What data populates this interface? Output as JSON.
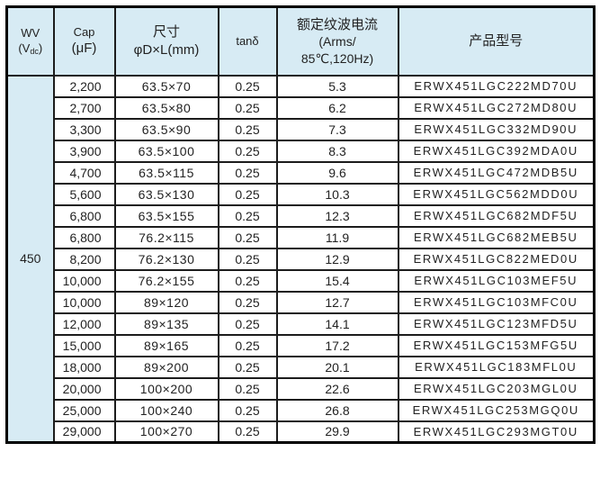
{
  "table": {
    "headers": {
      "wv": {
        "line1": "WV",
        "line2_open": "(V",
        "line2_sub": "dc",
        "line2_close": ")"
      },
      "cap": {
        "line1": "Cap",
        "line2": "(μF)"
      },
      "size": {
        "line1": "尺寸",
        "line2": "φD×L(mm)"
      },
      "tan": {
        "line1": "tanδ"
      },
      "ripple": {
        "line1": "额定纹波电流",
        "line2": "(Arms/",
        "line3": "85℃,120Hz)"
      },
      "part": {
        "line1": "产品型号"
      }
    },
    "wv_value": "450",
    "rows": [
      {
        "cap": "2,200",
        "size": "63.5×70",
        "tan": "0.25",
        "ripple": "5.3",
        "part": "ERWX451LGC222MD70U"
      },
      {
        "cap": "2,700",
        "size": "63.5×80",
        "tan": "0.25",
        "ripple": "6.2",
        "part": "ERWX451LGC272MD80U"
      },
      {
        "cap": "3,300",
        "size": "63.5×90",
        "tan": "0.25",
        "ripple": "7.3",
        "part": "ERWX451LGC332MD90U"
      },
      {
        "cap": "3,900",
        "size": "63.5×100",
        "tan": "0.25",
        "ripple": "8.3",
        "part": "ERWX451LGC392MDA0U"
      },
      {
        "cap": "4,700",
        "size": "63.5×115",
        "tan": "0.25",
        "ripple": "9.6",
        "part": "ERWX451LGC472MDB5U"
      },
      {
        "cap": "5,600",
        "size": "63.5×130",
        "tan": "0.25",
        "ripple": "10.3",
        "part": "ERWX451LGC562MDD0U"
      },
      {
        "cap": "6,800",
        "size": "63.5×155",
        "tan": "0.25",
        "ripple": "12.3",
        "part": "ERWX451LGC682MDF5U"
      },
      {
        "cap": "6,800",
        "size": "76.2×115",
        "tan": "0.25",
        "ripple": "11.9",
        "part": "ERWX451LGC682MEB5U"
      },
      {
        "cap": "8,200",
        "size": "76.2×130",
        "tan": "0.25",
        "ripple": "12.9",
        "part": "ERWX451LGC822MED0U"
      },
      {
        "cap": "10,000",
        "size": "76.2×155",
        "tan": "0.25",
        "ripple": "15.4",
        "part": "ERWX451LGC103MEF5U"
      },
      {
        "cap": "10,000",
        "size": "89×120",
        "tan": "0.25",
        "ripple": "12.7",
        "part": "ERWX451LGC103MFC0U"
      },
      {
        "cap": "12,000",
        "size": "89×135",
        "tan": "0.25",
        "ripple": "14.1",
        "part": "ERWX451LGC123MFD5U"
      },
      {
        "cap": "15,000",
        "size": "89×165",
        "tan": "0.25",
        "ripple": "17.2",
        "part": "ERWX451LGC153MFG5U"
      },
      {
        "cap": "18,000",
        "size": "89×200",
        "tan": "0.25",
        "ripple": "20.1",
        "part": "ERWX451LGC183MFL0U"
      },
      {
        "cap": "20,000",
        "size": "100×200",
        "tan": "0.25",
        "ripple": "22.6",
        "part": "ERWX451LGC203MGL0U"
      },
      {
        "cap": "25,000",
        "size": "100×240",
        "tan": "0.25",
        "ripple": "26.8",
        "part": "ERWX451LGC253MGQ0U"
      },
      {
        "cap": "29,000",
        "size": "100×270",
        "tan": "0.25",
        "ripple": "29.9",
        "part": "ERWX451LGC293MGT0U"
      }
    ]
  },
  "colors": {
    "header_bg": "#d7ebf4",
    "inner_border": "#1c1c1c",
    "outer_border": "#000000",
    "text": "#222222"
  }
}
